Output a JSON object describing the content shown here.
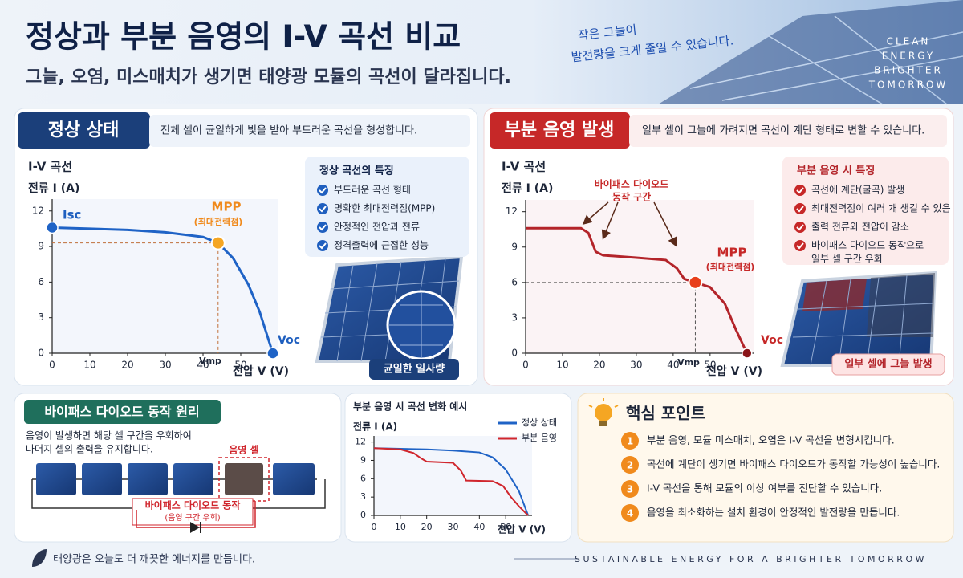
{
  "header": {
    "title": "정상과 부분 음영의 I-V 곡선 비교",
    "subtitle": "그늘, 오염, 미스매치가 생기면 태양광 모듈의 곡선이 달라집니다.",
    "note": [
      "작은 그늘이",
      "발전량을 크게 줄일 수 있습니다."
    ],
    "brand": [
      "CLEAN",
      "ENERGY",
      "BRIGHTER",
      "TOMORROW"
    ]
  },
  "panels": [
    {
      "badge": "정상 상태",
      "description": "전체 셀이 균일하게 빛을 받아 부드러운 곡선을 형성합니다.",
      "features_title": "정상 곡선의 특징",
      "features": [
        [
          "부드러운 곡선 형태"
        ],
        [
          "명확한 최대전력점(MPP)"
        ],
        [
          "안정적인 전압과 전류"
        ],
        [
          "정격출력에 근접한 성능"
        ]
      ],
      "image_caption": "균일한 일사량"
    },
    {
      "badge": "부분 음영 발생",
      "description": "일부 셀이 그늘에 가려지면 곡선이 계단 형태로 변할 수 있습니다.",
      "features_title": "부분 음영 시 특징",
      "features": [
        [
          "곡선에 계단(굴곡) 발생"
        ],
        [
          "최대전력점이 여러 개 생길 수 있음"
        ],
        [
          "출력 전류와 전압이 감소"
        ],
        [
          "바이패스 다이오드 동작으로",
          "일부 셀 구간 우회"
        ]
      ],
      "image_caption": "일부 셀에 그늘 발생"
    }
  ],
  "bypass": {
    "title": "바이패스 다이오드 동작 원리",
    "description": [
      "음영이 발생하면 해당 셀 구간을 우회하여",
      "나머지 셀의 출력을 유지합니다."
    ],
    "shaded_label": "음영 셀",
    "diode_label": "바이패스 다이오드 동작",
    "diode_sublabel": "(음영 구간 우회)"
  },
  "key_points": {
    "title": "핵심 포인트",
    "items": [
      {
        "number": "1",
        "text": "부분 음영, 모듈 미스매치, 오염은 I-V 곡선을 변형시킵니다."
      },
      {
        "number": "2",
        "text": "곡선에 계단이 생기면 바이패스 다이오드가 동작할 가능성이 높습니다."
      },
      {
        "number": "3",
        "text": "I-V 곡선을 통해 모듈의 이상 여부를 진단할 수 있습니다."
      },
      {
        "number": "4",
        "text": "음영을 최소화하는 설치 환경이 안정적인 발전량을 만듭니다."
      }
    ]
  },
  "footer": {
    "left": "태양광은 오늘도 더 깨끗한 에너지를 만듭니다.",
    "right": "SUSTAINABLE ENERGY FOR A BRIGHTER TOMORROW"
  },
  "chart_data": [
    {
      "type": "line",
      "title": "I-V 곡선",
      "ylabel": "전류 I (A)",
      "xlabel": "전압 V (V)",
      "xlim": [
        0,
        60
      ],
      "ylim": [
        0,
        13
      ],
      "xticks": [
        0,
        10,
        20,
        30,
        40,
        50
      ],
      "yticks": [
        0,
        3,
        6,
        9,
        12
      ],
      "series": [
        {
          "color": "#1f63c6",
          "x": [
            0,
            10,
            20,
            30,
            40,
            44,
            48,
            52,
            55,
            57,
            58.5
          ],
          "values": [
            10.6,
            10.5,
            10.4,
            10.2,
            9.8,
            9.3,
            8.0,
            5.8,
            3.5,
            1.5,
            0
          ]
        }
      ],
      "mpp": [
        44,
        9.3
      ],
      "mpp_color": "#f5a623",
      "annotations": {
        "isc": "Isc",
        "mpp": "MPP",
        "mpp_note": "(최대전력점)",
        "vmp": "Vmp",
        "voc": "Voc"
      }
    },
    {
      "type": "line",
      "title": "I-V 곡선",
      "ylabel": "전류 I (A)",
      "xlabel": "전압 V (V)",
      "xlim": [
        0,
        62
      ],
      "ylim": [
        0,
        13
      ],
      "xticks": [
        0,
        10,
        20,
        30,
        40,
        50
      ],
      "yticks": [
        0,
        3,
        6,
        9,
        12
      ],
      "series": [
        {
          "color": "#b3242a",
          "x": [
            0,
            15,
            17,
            19,
            21,
            30,
            38,
            41,
            43,
            46,
            50,
            54,
            57,
            60
          ],
          "values": [
            10.6,
            10.6,
            10.2,
            8.6,
            8.3,
            8.1,
            7.9,
            7.2,
            6.3,
            6.0,
            5.6,
            4.2,
            2.0,
            0
          ]
        }
      ],
      "mpp": [
        46,
        6.0
      ],
      "mpp_color": "#e8401c",
      "annotations": {
        "bypass": "바이패스 다이오드",
        "bypass_2": "동작 구간",
        "mpp": "MPP",
        "mpp_note": "(최대전력점)",
        "vmp": "Vmp",
        "voc": "Voc"
      }
    },
    {
      "type": "line",
      "title": "부분 음영 시 곡선 변화 예시",
      "ylabel": "전류 I (A)",
      "xlabel": "전압 V (V)",
      "xlim": [
        0,
        60
      ],
      "ylim": [
        0,
        13
      ],
      "xticks": [
        0,
        10,
        20,
        30,
        40,
        50
      ],
      "yticks": [
        0,
        3,
        6,
        9,
        12
      ],
      "series": [
        {
          "name": "정상 상태",
          "color": "#1f63c6",
          "x": [
            0,
            10,
            20,
            30,
            40,
            45,
            50,
            55,
            58.5
          ],
          "values": [
            11,
            10.9,
            10.8,
            10.6,
            10.3,
            9.5,
            7.5,
            4,
            0
          ]
        },
        {
          "name": "부분 음영",
          "color": "#d0262d",
          "x": [
            0,
            10,
            15,
            18,
            20,
            30,
            33,
            35,
            45,
            49,
            52,
            55,
            58.5
          ],
          "values": [
            11,
            10.8,
            10.2,
            9.3,
            8.8,
            8.6,
            7.3,
            5.7,
            5.6,
            4.8,
            3,
            1.5,
            0
          ]
        }
      ]
    }
  ]
}
